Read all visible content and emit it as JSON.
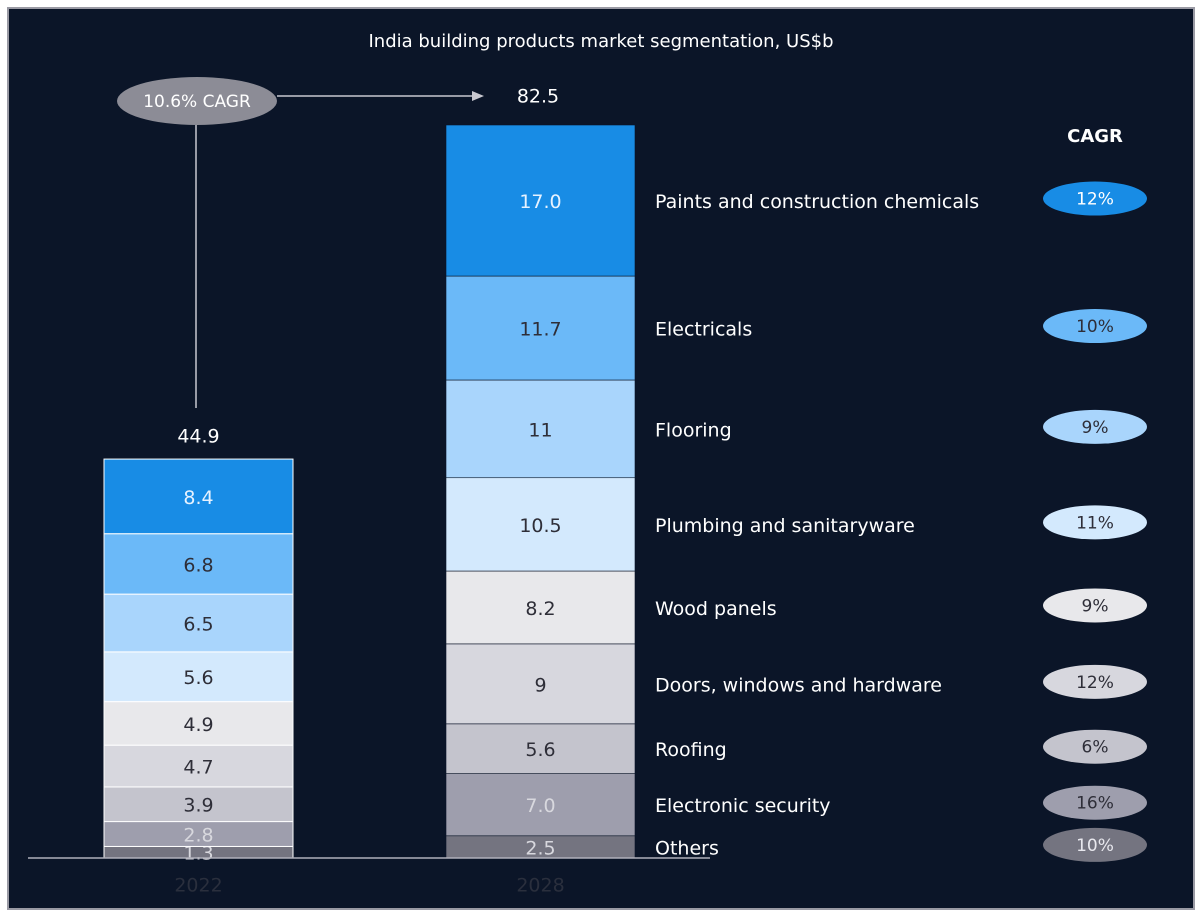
{
  "chart_data": {
    "type": "stacked_bar",
    "title": "India building products market segmentation, US$b",
    "annotation": "10.6% CAGR",
    "cagr_header": "CAGR",
    "categories": [
      "2022",
      "2028"
    ],
    "totals": [
      44.9,
      82.5
    ],
    "series": [
      {
        "name": "Others",
        "color": "#747480",
        "values": [
          1.3,
          2.5
        ],
        "cagr": "10%"
      },
      {
        "name": "Electronic security",
        "color": "#9e9ead",
        "values": [
          2.8,
          7
        ],
        "value_labels": [
          "2.8",
          "7.0"
        ],
        "cagr": "16%"
      },
      {
        "name": "Roofing",
        "color": "#c4c4cd",
        "values": [
          3.9,
          5.6
        ],
        "cagr": "6%"
      },
      {
        "name": "Doors, windows and hardware",
        "color": "#d7d7de",
        "values": [
          4.7,
          9
        ],
        "cagr": "12%"
      },
      {
        "name": "Wood panels",
        "color": "#e8e8eb",
        "values": [
          4.9,
          8.2
        ],
        "cagr": "9%"
      },
      {
        "name": "Plumbing and sanitaryware",
        "color": "#d3e9fd",
        "values": [
          5.6,
          10.5
        ],
        "cagr": "11%"
      },
      {
        "name": "Flooring",
        "color": "#a9d5fc",
        "values": [
          6.5,
          11
        ],
        "cagr": "9%"
      },
      {
        "name": "Electricals",
        "color": "#6bb9f8",
        "values": [
          6.8,
          11.7
        ],
        "cagr": "10%"
      },
      {
        "name": "Paints and construction chemicals",
        "color": "#188ce5",
        "values": [
          8.4,
          17
        ],
        "value_labels": [
          "8.4",
          "17.0"
        ],
        "cagr": "12%"
      }
    ]
  }
}
